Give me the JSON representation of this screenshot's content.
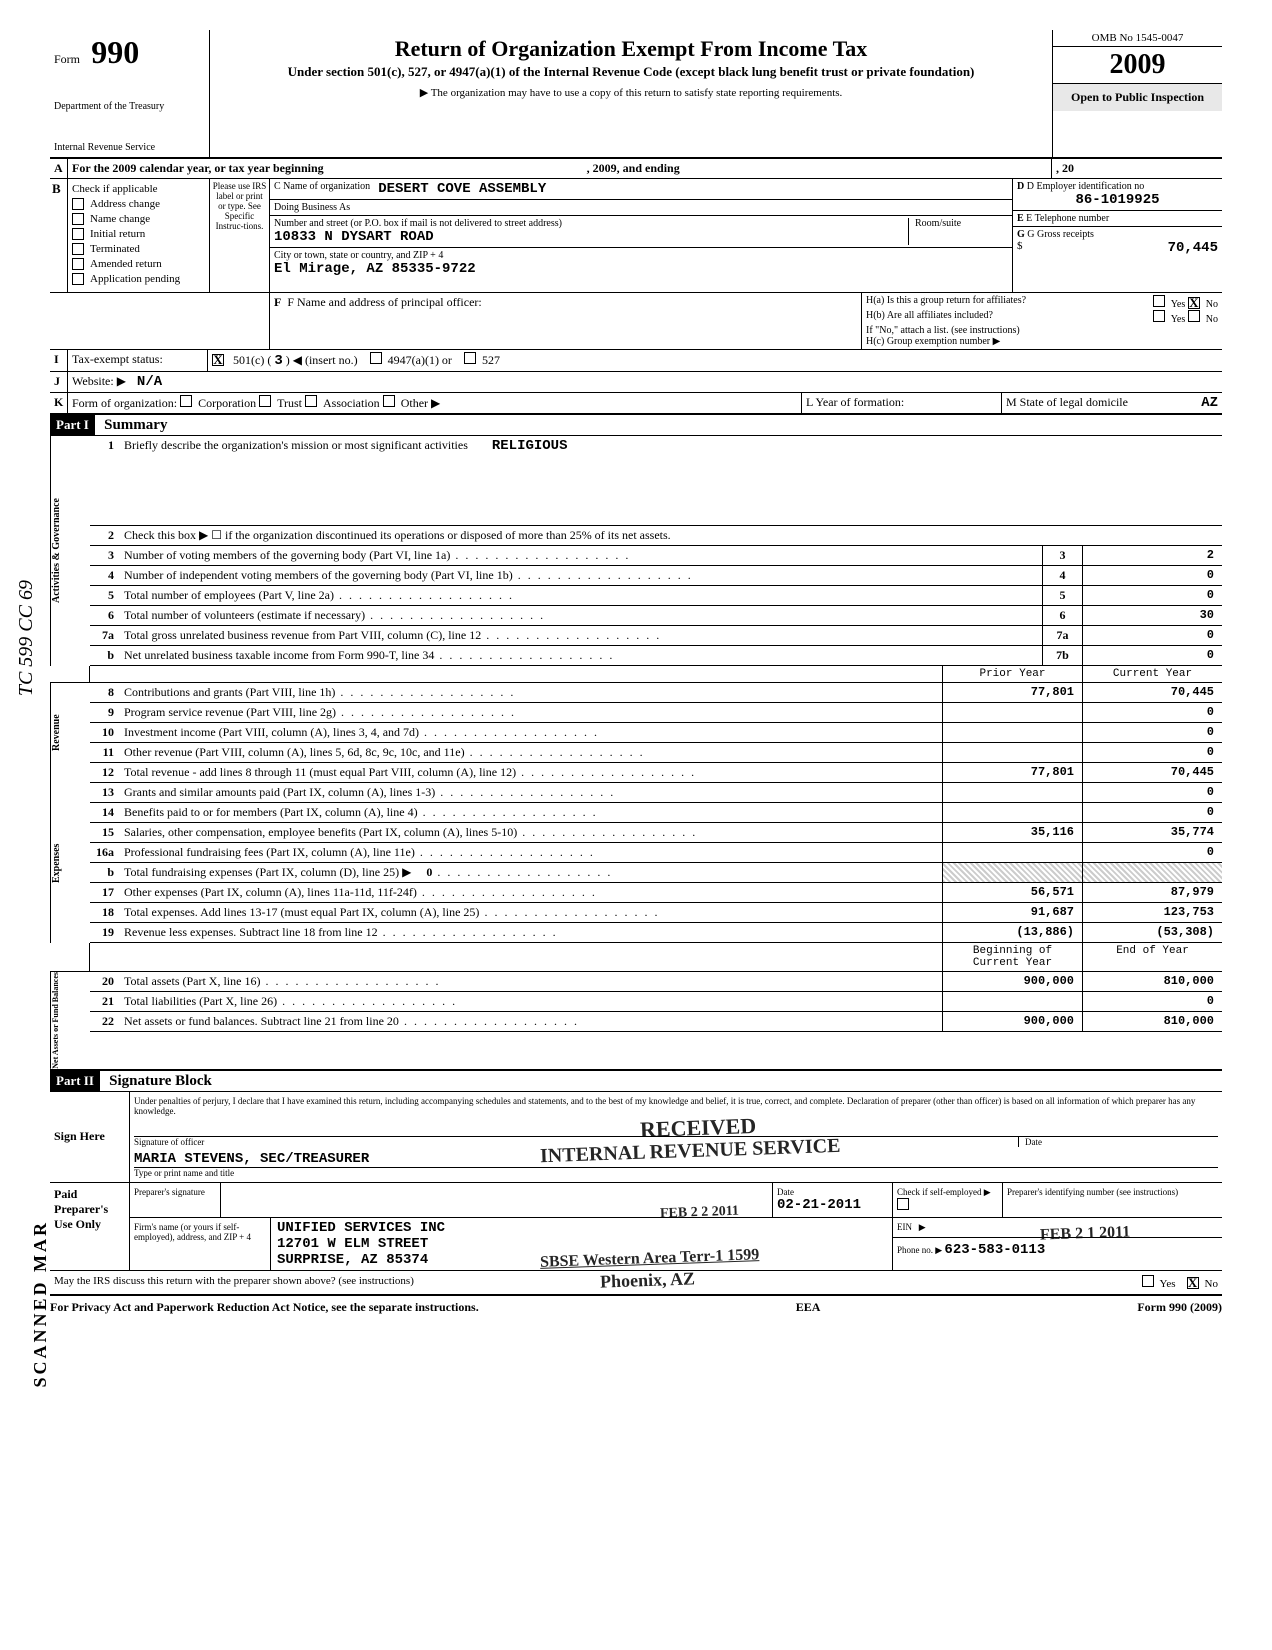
{
  "header": {
    "form_word": "Form",
    "form_number": "990",
    "dept1": "Department of the Treasury",
    "dept2": "Internal Revenue Service",
    "title": "Return of Organization Exempt From Income Tax",
    "subtitle": "Under section 501(c), 527, or 4947(a)(1) of the Internal Revenue Code (except black lung benefit trust or private foundation)",
    "note": "▶ The organization may have to use a copy of this return to satisfy state reporting requirements.",
    "omb": "OMB No 1545-0047",
    "year": "2009",
    "open": "Open to Public Inspection"
  },
  "sectionA": {
    "line": "For the 2009 calendar year, or tax year beginning",
    "mid": ", 2009, and ending",
    "end": ", 20"
  },
  "sectionB": {
    "header": "Check if applicable",
    "items": [
      "Address change",
      "Name change",
      "Initial return",
      "Terminated",
      "Amended return",
      "Application pending"
    ],
    "mid_label": "Please use IRS label or print or type. See Specific Instruc-tions.",
    "c_label": "C Name of organization",
    "c_value": "DESERT COVE ASSEMBLY",
    "dba": "Doing Business As",
    "addr_label": "Number and street (or P.O. box if mail is not delivered to street address)",
    "addr_value": "10833 N DYSART ROAD",
    "room": "Room/suite",
    "city_label": "City or town, state or country, and ZIP + 4",
    "city_value": "El Mirage, AZ 85335-9722",
    "d_label": "D Employer identification no",
    "d_value": "86-1019925",
    "e_label": "E Telephone number",
    "g_label": "G Gross receipts",
    "g_value": "70,445",
    "dollar": "$"
  },
  "sectionF": {
    "label": "F  Name and address of principal officer:",
    "ha": "H(a)  Is this a group return for affiliates?",
    "hb": "H(b)  Are all affiliates included?",
    "hb_note": "If \"No,\" attach a list. (see instructions)",
    "hc": "H(c)  Group exemption number  ▶",
    "yes": "Yes",
    "no": "No"
  },
  "sectionI": {
    "label": "Tax-exempt status:",
    "c501": "501(c) (",
    "c501_num": "3",
    "c501_end": ")  ◀ (insert no.)",
    "opt2": "4947(a)(1) or",
    "opt3": "527"
  },
  "sectionJ": {
    "label": "Website: ▶",
    "value": "N/A"
  },
  "sectionK": {
    "label": "Form of organization:",
    "opts": [
      "Corporation",
      "Trust",
      "Association",
      "Other ▶"
    ],
    "l_label": "L Year of formation:",
    "m_label": "M State of legal domicile",
    "m_value": "AZ"
  },
  "part1": {
    "hdr": "Part I",
    "title": "Summary",
    "line1": "Briefly describe the organization's mission or most significant activities",
    "line1_val": "RELIGIOUS",
    "line2": "Check this box ▶ ☐ if the organization discontinued its operations or disposed of more than 25% of its net assets.",
    "sidelabels": {
      "gov": "Activities & Governance",
      "rev": "Revenue",
      "exp": "Expenses",
      "net": "Net Assets or Fund Balances"
    },
    "simple_lines": [
      {
        "n": "3",
        "d": "Number of voting members of the governing body (Part VI, line 1a)",
        "v": "2"
      },
      {
        "n": "4",
        "d": "Number of independent voting members of the governing body (Part VI, line 1b)",
        "v": "0"
      },
      {
        "n": "5",
        "d": "Total number of employees (Part V, line 2a)",
        "v": "0"
      },
      {
        "n": "6",
        "d": "Total number of volunteers (estimate if necessary)",
        "v": "30"
      },
      {
        "n": "7a",
        "d": "Total gross unrelated business revenue from Part VIII, column (C), line 12",
        "v": "0"
      },
      {
        "n": "b",
        "d": "Net unrelated business taxable income from Form 990-T, line 34",
        "box": "7b",
        "v": "0"
      }
    ],
    "col_hdrs": {
      "prior": "Prior Year",
      "current": "Current Year"
    },
    "rev_lines": [
      {
        "n": "8",
        "d": "Contributions and grants (Part VIII, line 1h)",
        "p": "77,801",
        "c": "70,445"
      },
      {
        "n": "9",
        "d": "Program service revenue (Part VIII, line 2g)",
        "p": "",
        "c": "0"
      },
      {
        "n": "10",
        "d": "Investment income (Part VIII, column (A), lines 3, 4, and 7d)",
        "p": "",
        "c": "0"
      },
      {
        "n": "11",
        "d": "Other revenue (Part VIII, column (A), lines 5, 6d, 8c, 9c, 10c, and 11e)",
        "p": "",
        "c": "0"
      },
      {
        "n": "12",
        "d": "Total revenue - add lines 8 through 11 (must equal Part VIII, column (A), line 12)",
        "p": "77,801",
        "c": "70,445"
      }
    ],
    "exp_lines": [
      {
        "n": "13",
        "d": "Grants and similar amounts paid (Part IX, column (A), lines 1-3)",
        "p": "",
        "c": "0"
      },
      {
        "n": "14",
        "d": "Benefits paid to or for members (Part IX, column (A), line 4)",
        "p": "",
        "c": "0"
      },
      {
        "n": "15",
        "d": "Salaries, other compensation, employee benefits (Part IX, column (A), lines 5-10)",
        "p": "35,116",
        "c": "35,774"
      },
      {
        "n": "16a",
        "d": "Professional fundraising fees (Part IX, column (A), line 11e)",
        "p": "",
        "c": "0"
      },
      {
        "n": "b",
        "d": "Total fundraising expenses (Part IX, column (D), line 25) ▶",
        "extra": "0",
        "p": "hatched",
        "c": "hatched"
      },
      {
        "n": "17",
        "d": "Other expenses (Part IX, column (A), lines 11a-11d, 11f-24f)",
        "p": "56,571",
        "c": "87,979"
      },
      {
        "n": "18",
        "d": "Total expenses.  Add lines 13-17 (must equal Part IX, column (A), line 25)",
        "p": "91,687",
        "c": "123,753"
      },
      {
        "n": "19",
        "d": "Revenue less expenses. Subtract line 18 from line 12",
        "p": "(13,886)",
        "c": "(53,308)"
      }
    ],
    "net_hdrs": {
      "begin": "Beginning of Current Year",
      "end": "End of Year"
    },
    "net_lines": [
      {
        "n": "20",
        "d": "Total assets (Part X, line 16)",
        "p": "900,000",
        "c": "810,000"
      },
      {
        "n": "21",
        "d": "Total liabilities (Part X, line 26)",
        "p": "",
        "c": "0"
      },
      {
        "n": "22",
        "d": "Net assets or fund balances.  Subtract line 21 from line 20",
        "p": "900,000",
        "c": "810,000"
      }
    ]
  },
  "part2": {
    "hdr": "Part II",
    "title": "Signature Block",
    "perjury": "Under penalties of perjury, I declare that I have examined this return, including accompanying schedules and statements, and to the best of my knowledge and belief, it is true, correct, and complete. Declaration of preparer (other than officer) is based on all information of which preparer has any knowledge.",
    "sign_here": "Sign Here",
    "sig_officer": "Signature of officer",
    "date": "Date",
    "name_title": "MARIA STEVENS,  SEC/TREASURER",
    "name_title_lbl": "Type or print name and title",
    "paid": "Paid Preparer's Use Only",
    "prep_sig": "Preparer's signature",
    "prep_date": "02-21-2011",
    "check_self": "Check if self-employed ▶",
    "ptin": "Preparer's identifying number (see instructions)",
    "firm_lbl": "Firm's name (or yours if self-employed), address, and ZIP + 4",
    "firm_name": "UNIFIED SERVICES INC",
    "firm_addr1": "12701 W ELM STREET",
    "firm_addr2": "SURPRISE, AZ 85374",
    "ein": "EIN",
    "phone_lbl": "Phone no. ▶",
    "phone": "623-583-0113",
    "discuss": "May the IRS discuss this return with the preparer shown above? (see instructions)",
    "yes": "Yes",
    "no": "No"
  },
  "stamps": {
    "received": "RECEIVED",
    "irs": "INTERNAL REVENUE SERVICE",
    "sbse": "SBSE Western Area Terr-1 1599",
    "phoenix": "Phoenix, AZ",
    "feb1": "FEB 2 2 2011",
    "feb2": "FEB 2 1 2011",
    "scanned": "SCANNED MAR",
    "side": "TC 599 CC 69"
  },
  "footer": {
    "left": "For Privacy Act and Paperwork Reduction Act Notice, see the separate instructions.",
    "mid": "EEA",
    "right": "Form 990 (2009)"
  }
}
